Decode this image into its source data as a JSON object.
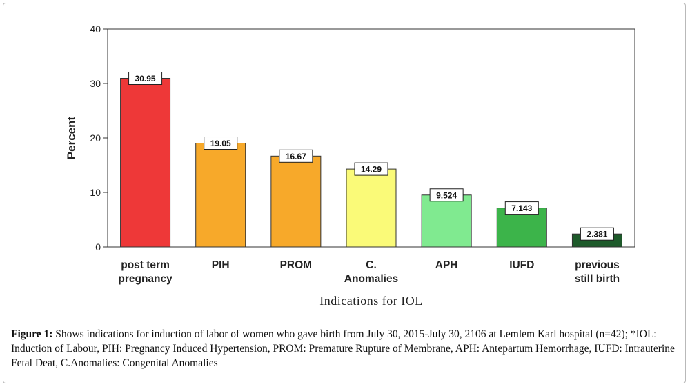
{
  "chart_data": {
    "type": "bar",
    "categories": [
      [
        "post term",
        "pregnancy"
      ],
      [
        "PIH"
      ],
      [
        "PROM"
      ],
      [
        "C.",
        "Anomalies"
      ],
      [
        "APH"
      ],
      [
        "IUFD"
      ],
      [
        "previous",
        "still birth"
      ]
    ],
    "values": [
      30.95,
      19.05,
      16.67,
      14.29,
      9.524,
      7.143,
      2.381
    ],
    "data_labels": [
      "30.95",
      "19.05",
      "16.67",
      "14.29",
      "9.524",
      "7.143",
      "2.381"
    ],
    "bar_colors": [
      "#ee3838",
      "#f7a92a",
      "#f7a92a",
      "#fafa78",
      "#80ea90",
      "#3cb44a",
      "#1d5a2a"
    ],
    "ylabel": "Percent",
    "xlabel": "Indications for IOL",
    "ylim": [
      0,
      40
    ],
    "yticks": [
      0,
      10,
      20,
      30,
      40
    ],
    "grid": false,
    "legend": "none"
  },
  "caption": {
    "label": "Figure 1:",
    "text": " Shows indications for induction of labor of women who gave birth from July 30, 2015-July 30, 2106 at Lemlem Karl hospital (n=42); *IOL: Induction of Labour, PIH: Pregnancy Induced Hypertension, PROM: Premature Rupture of Membrane, APH: Antepartum Hemorrhage, IUFD: Intrauterine Fetal Deat, C.Anomalies: Congenital Anomalies"
  }
}
